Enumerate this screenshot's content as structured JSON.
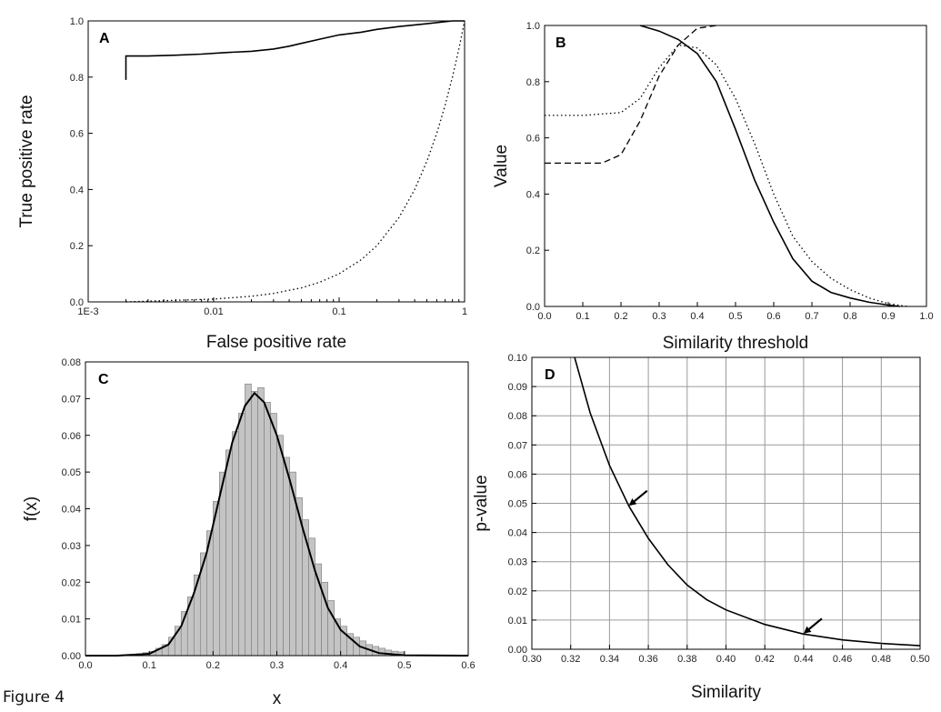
{
  "figure_caption": "Figure 4",
  "chart_data": [
    {
      "panel": "A",
      "type": "line",
      "xlabel": "False positive rate",
      "ylabel": "True positive rate",
      "xscale": "log",
      "xlim": [
        0.001,
        1
      ],
      "ylim": [
        0,
        1
      ],
      "xticks": [
        {
          "value": 0.001,
          "label": "1E-3"
        },
        {
          "value": 0.01,
          "label": "0.01"
        },
        {
          "value": 0.1,
          "label": "0.1"
        },
        {
          "value": 1,
          "label": "1"
        }
      ],
      "yticks": [
        "0.0",
        "0.2",
        "0.4",
        "0.6",
        "0.8",
        "1.0"
      ],
      "series": [
        {
          "style": "solid",
          "x": [
            0.002,
            0.002,
            0.003,
            0.005,
            0.008,
            0.012,
            0.02,
            0.03,
            0.04,
            0.05,
            0.07,
            0.1,
            0.15,
            0.2,
            0.3,
            0.5,
            0.8,
            1.0
          ],
          "y": [
            0.79,
            0.875,
            0.875,
            0.878,
            0.882,
            0.887,
            0.892,
            0.9,
            0.91,
            0.92,
            0.935,
            0.95,
            0.96,
            0.97,
            0.98,
            0.99,
            1.0,
            1.0
          ]
        },
        {
          "style": "dotted",
          "x": [
            0.002,
            0.01,
            0.02,
            0.03,
            0.05,
            0.07,
            0.1,
            0.15,
            0.2,
            0.3,
            0.4,
            0.5,
            0.6,
            0.7,
            0.8,
            0.9,
            1.0
          ],
          "y": [
            0.0,
            0.01,
            0.02,
            0.03,
            0.05,
            0.07,
            0.1,
            0.15,
            0.2,
            0.3,
            0.4,
            0.5,
            0.6,
            0.7,
            0.8,
            0.9,
            1.0
          ]
        }
      ]
    },
    {
      "panel": "B",
      "type": "line",
      "xlabel": "Similarity threshold",
      "ylabel": "Value",
      "xlim": [
        0,
        1
      ],
      "ylim": [
        0,
        1
      ],
      "xticks": [
        "0.0",
        "0.1",
        "0.2",
        "0.3",
        "0.4",
        "0.5",
        "0.6",
        "0.7",
        "0.8",
        "0.9",
        "1.0"
      ],
      "yticks": [
        "0.0",
        "0.2",
        "0.4",
        "0.6",
        "0.8",
        "1.0"
      ],
      "series": [
        {
          "style": "solid",
          "x": [
            0.25,
            0.3,
            0.35,
            0.4,
            0.45,
            0.5,
            0.55,
            0.6,
            0.65,
            0.7,
            0.75,
            0.8,
            0.85,
            0.9,
            0.93
          ],
          "y": [
            1.0,
            0.98,
            0.95,
            0.9,
            0.8,
            0.63,
            0.45,
            0.3,
            0.17,
            0.09,
            0.05,
            0.03,
            0.015,
            0.005,
            0.0
          ]
        },
        {
          "style": "dotted",
          "x": [
            0.0,
            0.1,
            0.2,
            0.25,
            0.3,
            0.35,
            0.4,
            0.45,
            0.5,
            0.55,
            0.6,
            0.65,
            0.7,
            0.75,
            0.8,
            0.85,
            0.9,
            0.95
          ],
          "y": [
            0.68,
            0.68,
            0.69,
            0.74,
            0.85,
            0.93,
            0.92,
            0.86,
            0.74,
            0.58,
            0.4,
            0.25,
            0.16,
            0.1,
            0.06,
            0.03,
            0.01,
            0.0
          ]
        },
        {
          "style": "dashed",
          "x": [
            0.0,
            0.15,
            0.2,
            0.25,
            0.3,
            0.35,
            0.4,
            0.45
          ],
          "y": [
            0.51,
            0.51,
            0.54,
            0.66,
            0.82,
            0.93,
            0.99,
            1.0
          ]
        }
      ]
    },
    {
      "panel": "C",
      "type": "bar",
      "xlabel": "x",
      "ylabel": "f(x)",
      "xlim": [
        0,
        0.6
      ],
      "ylim": [
        0,
        0.08
      ],
      "xticks": [
        "0.0",
        "0.1",
        "0.2",
        "0.3",
        "0.4",
        "0.5",
        "0.6"
      ],
      "yticks": [
        "0.00",
        "0.01",
        "0.02",
        "0.03",
        "0.04",
        "0.05",
        "0.06",
        "0.07",
        "0.08"
      ],
      "histogram": {
        "bin_width": 0.01,
        "bin_start": [
          0.06,
          0.07,
          0.08,
          0.09,
          0.1,
          0.11,
          0.12,
          0.13,
          0.14,
          0.15,
          0.16,
          0.17,
          0.18,
          0.19,
          0.2,
          0.21,
          0.22,
          0.23,
          0.24,
          0.25,
          0.26,
          0.27,
          0.28,
          0.29,
          0.3,
          0.31,
          0.32,
          0.33,
          0.34,
          0.35,
          0.36,
          0.37,
          0.38,
          0.39,
          0.4,
          0.41,
          0.42,
          0.43,
          0.44,
          0.45,
          0.46,
          0.47,
          0.48,
          0.49
        ],
        "values": [
          0.0002,
          0.0003,
          0.0005,
          0.0008,
          0.0012,
          0.002,
          0.003,
          0.005,
          0.008,
          0.012,
          0.016,
          0.022,
          0.028,
          0.034,
          0.042,
          0.05,
          0.056,
          0.061,
          0.066,
          0.074,
          0.072,
          0.073,
          0.069,
          0.066,
          0.06,
          0.054,
          0.05,
          0.043,
          0.037,
          0.032,
          0.025,
          0.02,
          0.015,
          0.01,
          0.008,
          0.006,
          0.005,
          0.004,
          0.003,
          0.0025,
          0.002,
          0.0015,
          0.0012,
          0.001
        ]
      },
      "fit_curve": {
        "x": [
          0.0,
          0.05,
          0.1,
          0.13,
          0.15,
          0.17,
          0.19,
          0.21,
          0.23,
          0.25,
          0.265,
          0.28,
          0.3,
          0.32,
          0.34,
          0.36,
          0.38,
          0.4,
          0.43,
          0.46,
          0.5,
          0.6
        ],
        "y": [
          0.0,
          0.0,
          0.0005,
          0.003,
          0.008,
          0.017,
          0.028,
          0.043,
          0.058,
          0.068,
          0.0715,
          0.069,
          0.06,
          0.048,
          0.035,
          0.023,
          0.013,
          0.007,
          0.0025,
          0.0007,
          0.0001,
          0.0
        ]
      }
    },
    {
      "panel": "D",
      "type": "line",
      "xlabel": "Similarity",
      "ylabel": "p-value",
      "xlim": [
        0.3,
        0.5
      ],
      "ylim": [
        0,
        0.1
      ],
      "grid": true,
      "xticks": [
        "0.30",
        "0.32",
        "0.34",
        "0.36",
        "0.38",
        "0.40",
        "0.42",
        "0.44",
        "0.46",
        "0.48",
        "0.50"
      ],
      "yticks": [
        "0.00",
        "0.01",
        "0.02",
        "0.03",
        "0.04",
        "0.05",
        "0.06",
        "0.07",
        "0.08",
        "0.09",
        "0.10"
      ],
      "series": [
        {
          "style": "solid",
          "x": [
            0.322,
            0.33,
            0.34,
            0.35,
            0.36,
            0.37,
            0.38,
            0.39,
            0.4,
            0.42,
            0.44,
            0.46,
            0.48,
            0.5
          ],
          "y": [
            0.1,
            0.081,
            0.063,
            0.049,
            0.038,
            0.029,
            0.022,
            0.017,
            0.0135,
            0.0085,
            0.0052,
            0.0032,
            0.002,
            0.0012
          ]
        }
      ],
      "arrows": [
        {
          "x": 0.35,
          "y": 0.049
        },
        {
          "x": 0.44,
          "y": 0.0052
        }
      ]
    }
  ]
}
